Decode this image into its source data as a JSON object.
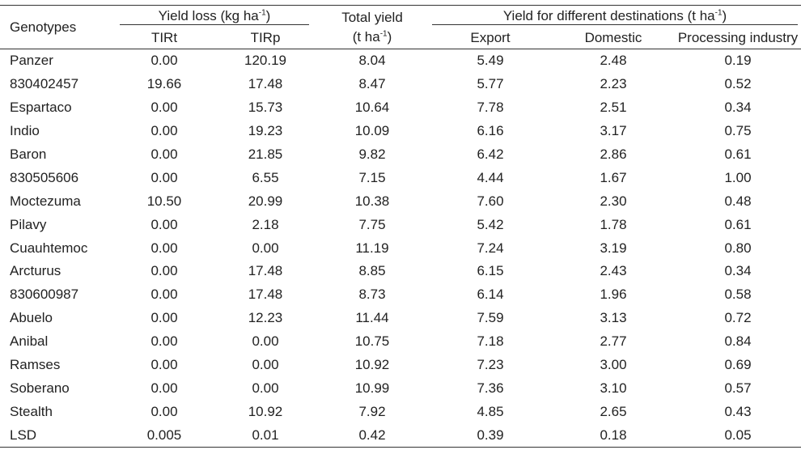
{
  "table": {
    "headers": {
      "genotypes": "Genotypes",
      "yield_loss": {
        "text": "Yield loss (kg ha",
        "sup": "-1",
        "tail": ")"
      },
      "tirt": "TIRt",
      "tirp": "TIRp",
      "total_yield": {
        "line1": "Total yield",
        "line2_text": "(t ha",
        "sup": "-1",
        "tail": ")"
      },
      "destinations": {
        "text": "Yield for different destinations (t ha",
        "sup": "-1",
        "tail": ")"
      },
      "export": "Export",
      "domestic": "Domestic",
      "processing": "Processing industry"
    },
    "rows": [
      {
        "genotype": "Panzer",
        "tirt": "0.00",
        "tirp": "120.19",
        "total": "8.04",
        "export": "5.49",
        "domestic": "2.48",
        "processing": "0.19"
      },
      {
        "genotype": "830402457",
        "tirt": "19.66",
        "tirp": "17.48",
        "total": "8.47",
        "export": "5.77",
        "domestic": "2.23",
        "processing": "0.52"
      },
      {
        "genotype": "Espartaco",
        "tirt": "0.00",
        "tirp": "15.73",
        "total": "10.64",
        "export": "7.78",
        "domestic": "2.51",
        "processing": "0.34"
      },
      {
        "genotype": "Indio",
        "tirt": "0.00",
        "tirp": "19.23",
        "total": "10.09",
        "export": "6.16",
        "domestic": "3.17",
        "processing": "0.75"
      },
      {
        "genotype": "Baron",
        "tirt": "0.00",
        "tirp": "21.85",
        "total": "9.82",
        "export": "6.42",
        "domestic": "2.86",
        "processing": "0.61"
      },
      {
        "genotype": "830505606",
        "tirt": "0.00",
        "tirp": "6.55",
        "total": "7.15",
        "export": "4.44",
        "domestic": "1.67",
        "processing": "1.00"
      },
      {
        "genotype": "Moctezuma",
        "tirt": "10.50",
        "tirp": "20.99",
        "total": "10.38",
        "export": "7.60",
        "domestic": "2.30",
        "processing": "0.48"
      },
      {
        "genotype": "Pilavy",
        "tirt": "0.00",
        "tirp": "2.18",
        "total": "7.75",
        "export": "5.42",
        "domestic": "1.78",
        "processing": "0.61"
      },
      {
        "genotype": "Cuauhtemoc",
        "tirt": "0.00",
        "tirp": "0.00",
        "total": "11.19",
        "export": "7.24",
        "domestic": "3.19",
        "processing": "0.80"
      },
      {
        "genotype": "Arcturus",
        "tirt": "0.00",
        "tirp": "17.48",
        "total": "8.85",
        "export": "6.15",
        "domestic": "2.43",
        "processing": "0.34"
      },
      {
        "genotype": "830600987",
        "tirt": "0.00",
        "tirp": "17.48",
        "total": "8.73",
        "export": "6.14",
        "domestic": "1.96",
        "processing": "0.58"
      },
      {
        "genotype": "Abuelo",
        "tirt": "0.00",
        "tirp": "12.23",
        "total": "11.44",
        "export": "7.59",
        "domestic": "3.13",
        "processing": "0.72"
      },
      {
        "genotype": "Anibal",
        "tirt": "0.00",
        "tirp": "0.00",
        "total": "10.75",
        "export": "7.18",
        "domestic": "2.77",
        "processing": "0.84"
      },
      {
        "genotype": "Ramses",
        "tirt": "0.00",
        "tirp": "0.00",
        "total": "10.92",
        "export": "7.23",
        "domestic": "3.00",
        "processing": "0.69"
      },
      {
        "genotype": "Soberano",
        "tirt": "0.00",
        "tirp": "0.00",
        "total": "10.99",
        "export": "7.36",
        "domestic": "3.10",
        "processing": "0.57"
      },
      {
        "genotype": "Stealth",
        "tirt": "0.00",
        "tirp": "10.92",
        "total": "7.92",
        "export": "4.85",
        "domestic": "2.65",
        "processing": "0.43"
      },
      {
        "genotype": "LSD",
        "tirt": "0.005",
        "tirp": "0.01",
        "total": "0.42",
        "export": "0.39",
        "domestic": "0.18",
        "processing": "0.05"
      }
    ]
  }
}
